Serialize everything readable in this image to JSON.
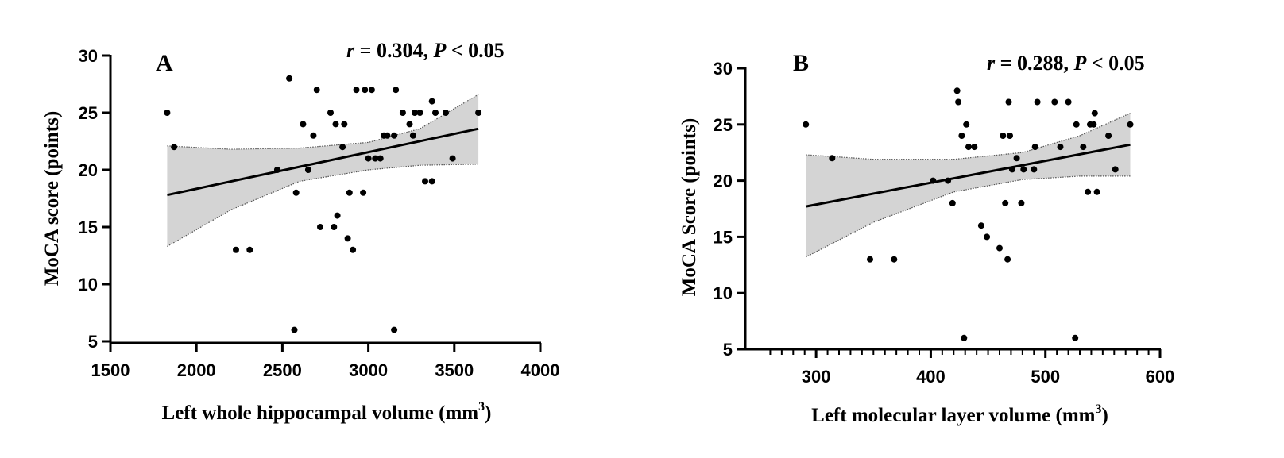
{
  "colors": {
    "band_fill": "#d4d4d4",
    "band_edge": "#555555",
    "points": "#000000",
    "line": "#000000",
    "background": "#ffffff"
  },
  "chart_data": [
    {
      "type": "scatter",
      "panel": "A",
      "stat": {
        "r_label": "r",
        "r_text": " = 0.304, ",
        "p_label": "P",
        "p_text": " < 0.05"
      },
      "xlabel": "Left whole hippocampal volume (mm",
      "xlabel_sup": "3",
      "xlabel_close": ")",
      "ylabel": "MoCA score (points)",
      "xlim": [
        1500,
        4000
      ],
      "ylim": [
        5,
        30
      ],
      "xticks": [
        1500,
        2000,
        2500,
        3000,
        3500,
        4000
      ],
      "yticks": [
        5,
        10,
        15,
        20,
        25,
        30
      ],
      "x_minor": false,
      "points": [
        [
          1830,
          25
        ],
        [
          1870,
          22
        ],
        [
          2230,
          13
        ],
        [
          2310,
          13
        ],
        [
          2470,
          20
        ],
        [
          2540,
          28
        ],
        [
          2570,
          6
        ],
        [
          2580,
          18
        ],
        [
          2620,
          24
        ],
        [
          2650,
          20
        ],
        [
          2680,
          23
        ],
        [
          2700,
          27
        ],
        [
          2720,
          15
        ],
        [
          2780,
          25
        ],
        [
          2800,
          15
        ],
        [
          2810,
          24
        ],
        [
          2820,
          16
        ],
        [
          2850,
          22
        ],
        [
          2860,
          24
        ],
        [
          2880,
          14
        ],
        [
          2890,
          18
        ],
        [
          2910,
          13
        ],
        [
          2930,
          27
        ],
        [
          2970,
          18
        ],
        [
          2980,
          27
        ],
        [
          3000,
          21
        ],
        [
          3020,
          27
        ],
        [
          3040,
          21
        ],
        [
          3070,
          21
        ],
        [
          3090,
          23
        ],
        [
          3110,
          23
        ],
        [
          3150,
          6
        ],
        [
          3150,
          23
        ],
        [
          3160,
          27
        ],
        [
          3200,
          25
        ],
        [
          3240,
          24
        ],
        [
          3260,
          23
        ],
        [
          3270,
          25
        ],
        [
          3300,
          25
        ],
        [
          3330,
          19
        ],
        [
          3370,
          19
        ],
        [
          3370,
          26
        ],
        [
          3390,
          25
        ],
        [
          3450,
          25
        ],
        [
          3490,
          21
        ],
        [
          3640,
          25
        ]
      ],
      "fit": {
        "x": [
          1830,
          3640
        ],
        "y": [
          17.8,
          23.6
        ]
      },
      "band": {
        "x": [
          1830,
          2200,
          2600,
          3000,
          3300,
          3640
        ],
        "upper": [
          22.1,
          21.8,
          21.9,
          22.4,
          23.6,
          26.6
        ],
        "lower": [
          13.3,
          16.5,
          19.0,
          20.0,
          20.4,
          20.5
        ]
      }
    },
    {
      "type": "scatter",
      "panel": "B",
      "stat": {
        "r_label": "r",
        "r_text": " = 0.288, ",
        "p_label": "P",
        "p_text": " < 0.05"
      },
      "xlabel": "Left molecular layer volume (mm",
      "xlabel_sup": "3",
      "xlabel_close": ")",
      "ylabel": "MoCA Score (points)",
      "xlim": [
        250,
        600
      ],
      "ylim": [
        5,
        30
      ],
      "xticks": [
        300,
        400,
        500,
        600
      ],
      "yticks": [
        5,
        10,
        15,
        20,
        25,
        30
      ],
      "x_minor": true,
      "points": [
        [
          291,
          25
        ],
        [
          314,
          22
        ],
        [
          347,
          13
        ],
        [
          368,
          13
        ],
        [
          402,
          20
        ],
        [
          415,
          20
        ],
        [
          419,
          18
        ],
        [
          423,
          28
        ],
        [
          424,
          27
        ],
        [
          427,
          24
        ],
        [
          429,
          6
        ],
        [
          431,
          25
        ],
        [
          433,
          23
        ],
        [
          438,
          23
        ],
        [
          444,
          16
        ],
        [
          449,
          15
        ],
        [
          460,
          14
        ],
        [
          463,
          24
        ],
        [
          465,
          18
        ],
        [
          467,
          13
        ],
        [
          468,
          27
        ],
        [
          469,
          24
        ],
        [
          471,
          21
        ],
        [
          475,
          22
        ],
        [
          479,
          18
        ],
        [
          481,
          21
        ],
        [
          490,
          21
        ],
        [
          491,
          23
        ],
        [
          493,
          27
        ],
        [
          508,
          27
        ],
        [
          513,
          23
        ],
        [
          520,
          27
        ],
        [
          526,
          6
        ],
        [
          527,
          25
        ],
        [
          533,
          23
        ],
        [
          537,
          19
        ],
        [
          539,
          25
        ],
        [
          542,
          25
        ],
        [
          543,
          26
        ],
        [
          545,
          19
        ],
        [
          555,
          24
        ],
        [
          561,
          21
        ],
        [
          574,
          25
        ]
      ],
      "fit": {
        "x": [
          291,
          574
        ],
        "y": [
          17.7,
          23.2
        ]
      },
      "band": {
        "x": [
          291,
          350,
          420,
          480,
          530,
          574
        ],
        "upper": [
          22.3,
          21.9,
          21.9,
          22.5,
          24.0,
          26.0
        ],
        "lower": [
          13.2,
          16.3,
          19.0,
          20.1,
          20.4,
          20.4
        ]
      }
    }
  ]
}
